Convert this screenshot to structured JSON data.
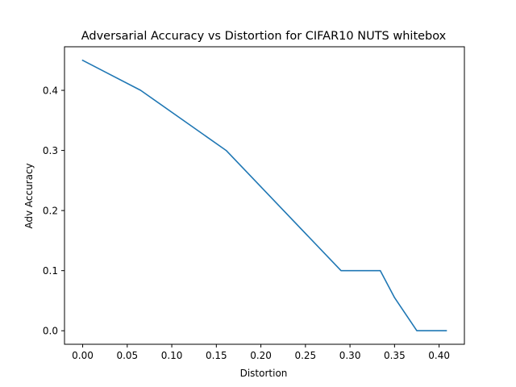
{
  "chart_data": {
    "type": "line",
    "title": "Adversarial Accuracy vs Distortion for CIFAR10 NUTS whitebox",
    "xlabel": "Distortion",
    "ylabel": "Adv Accuracy",
    "xlim": [
      -0.0204,
      0.4284
    ],
    "ylim": [
      -0.0225,
      0.4725
    ],
    "xticks": [
      0.0,
      0.05,
      0.1,
      0.15,
      0.2,
      0.25,
      0.3,
      0.35,
      0.4
    ],
    "xtick_labels": [
      "0.00",
      "0.05",
      "0.10",
      "0.15",
      "0.20",
      "0.25",
      "0.30",
      "0.35",
      "0.40"
    ],
    "yticks": [
      0.0,
      0.1,
      0.2,
      0.3,
      0.4
    ],
    "ytick_labels": [
      "0.0",
      "0.1",
      "0.2",
      "0.3",
      "0.4"
    ],
    "grid": false,
    "series": [
      {
        "color": "#1f77b4",
        "x": [
          0.0,
          0.065,
          0.161,
          0.29,
          0.334,
          0.35,
          0.375,
          0.408
        ],
        "y": [
          0.45,
          0.4,
          0.3,
          0.1,
          0.1,
          0.055,
          0.0,
          0.0
        ]
      }
    ]
  }
}
